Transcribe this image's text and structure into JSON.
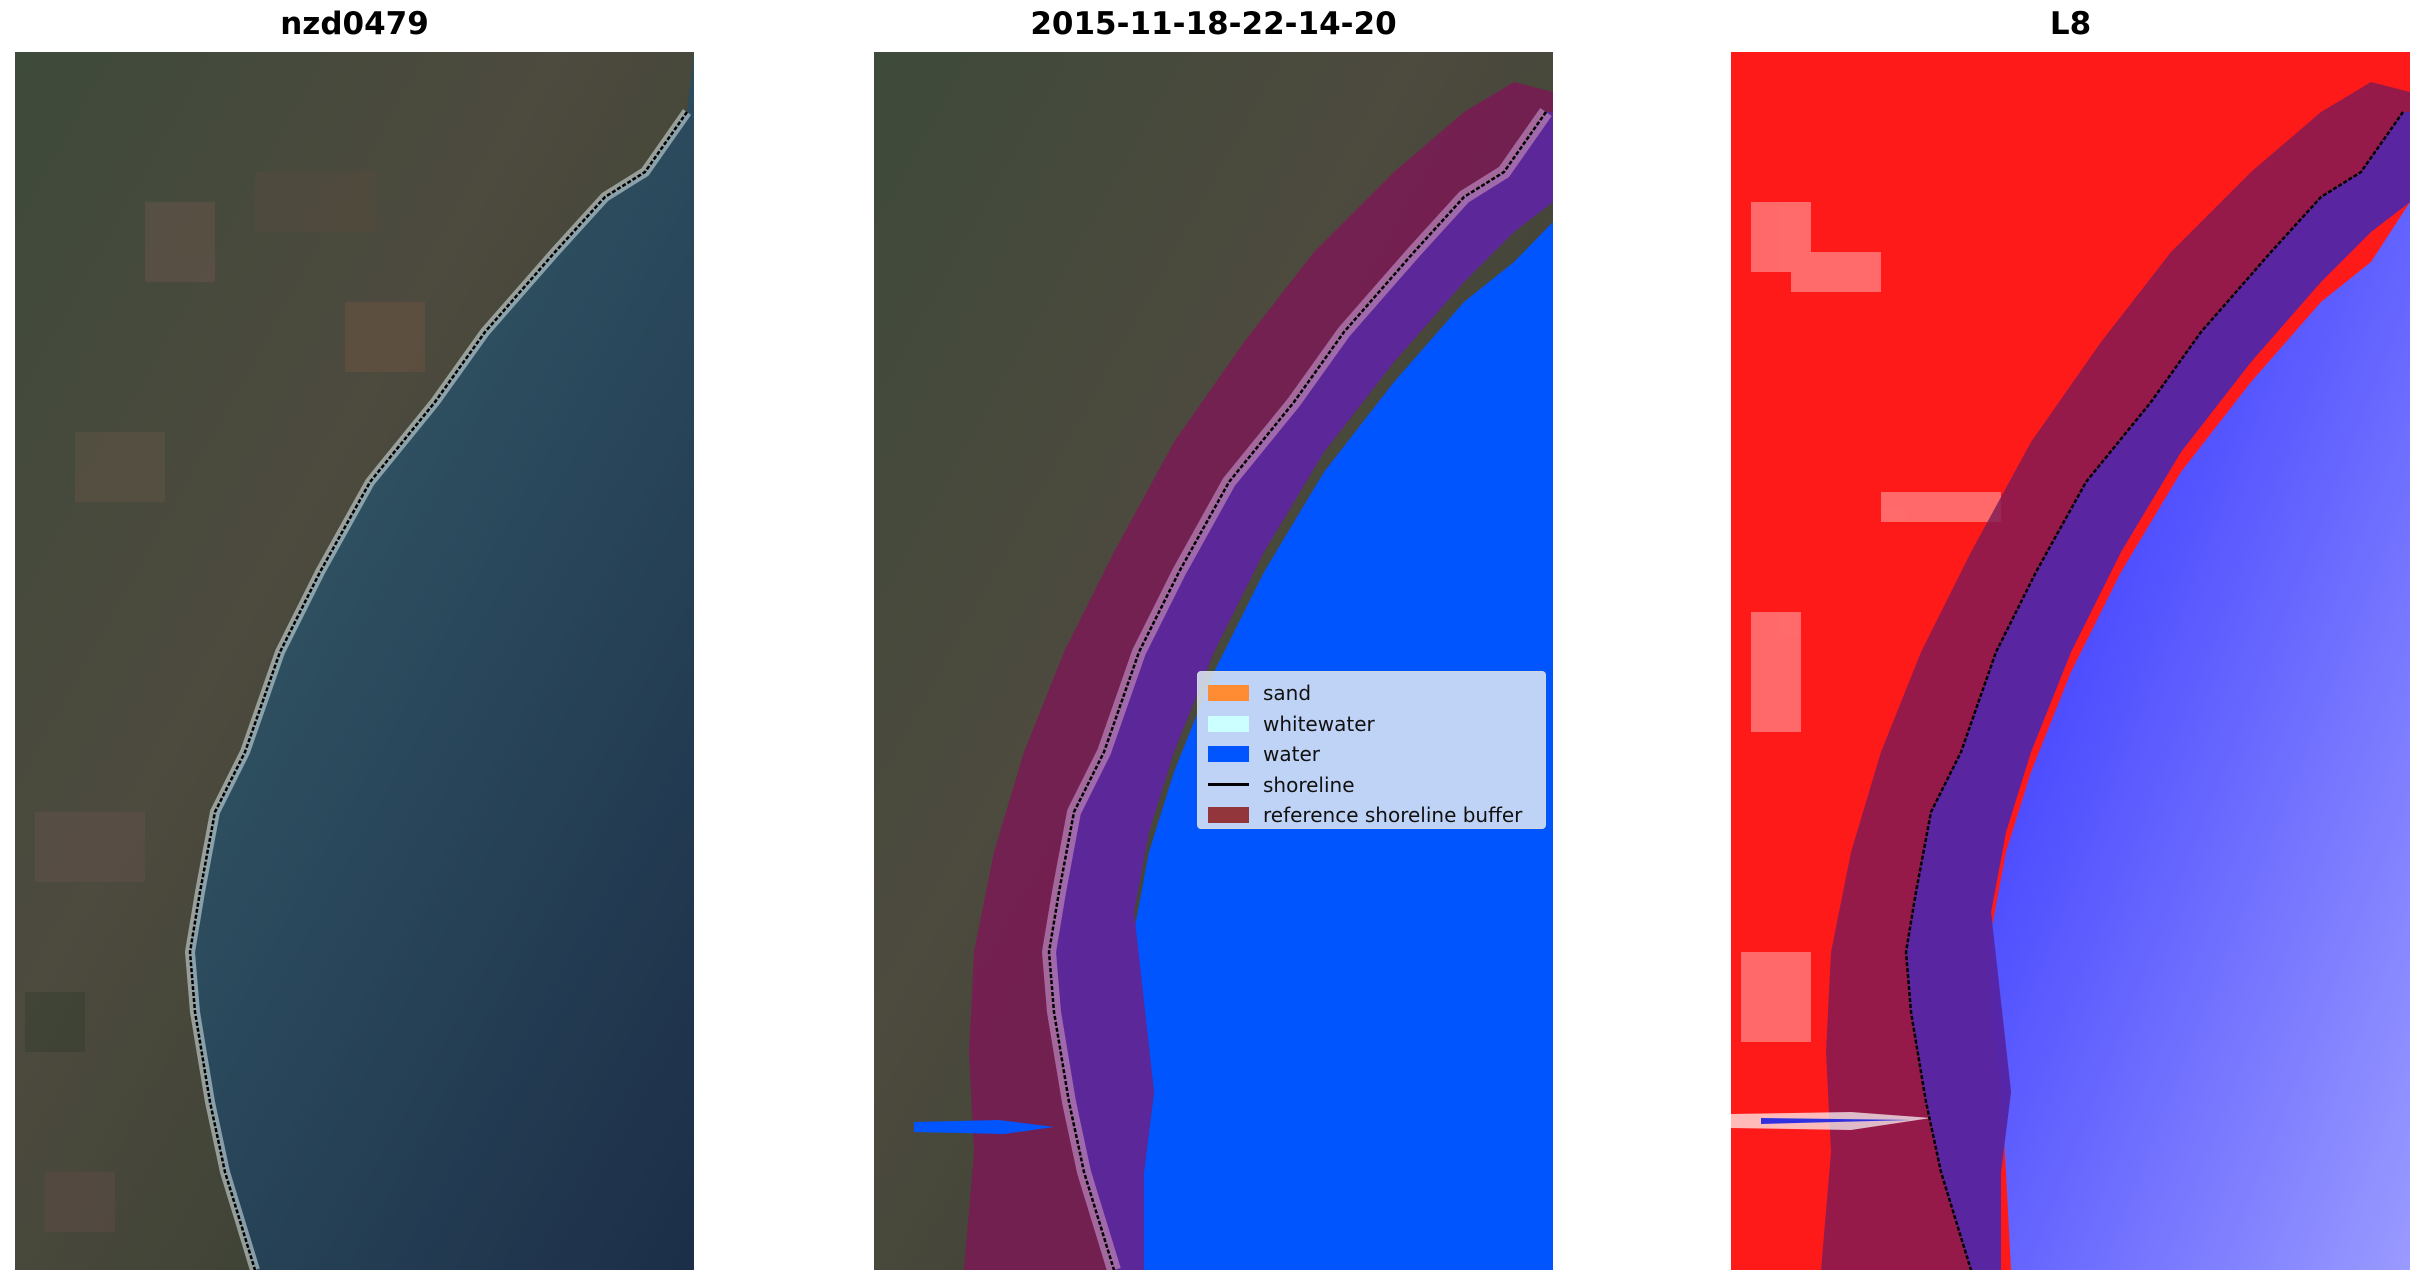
{
  "panels": [
    {
      "title": "nzd0479",
      "view": "true color satellite image"
    },
    {
      "title": "2015-11-18-22-14-20",
      "view": "classified image"
    },
    {
      "title": "L8",
      "view": "water index image"
    }
  ],
  "legend": {
    "items": [
      {
        "label": "sand",
        "color": "#ff8c33",
        "kind": "patch"
      },
      {
        "label": "whitewater",
        "color": "#ccffff",
        "kind": "patch"
      },
      {
        "label": "water",
        "color": "#0055ff",
        "kind": "patch"
      },
      {
        "label": "shoreline",
        "color": "#000000",
        "kind": "line"
      },
      {
        "label": "reference shoreline buffer",
        "color": "#8b1a1a",
        "kind": "patch"
      }
    ]
  }
}
